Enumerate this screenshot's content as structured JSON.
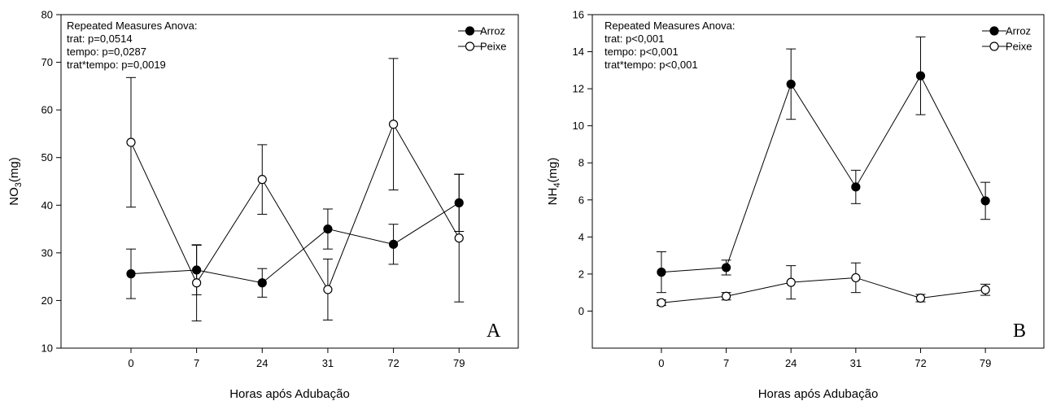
{
  "chart_data": [
    {
      "type": "line",
      "panel_letter": "A",
      "xlabel": "Horas após Adubação",
      "ylabel_main": "NO",
      "ylabel_sub": "3",
      "ylabel_unit": "(mg)",
      "categories": [
        "0",
        "7",
        "24",
        "31",
        "72",
        "79"
      ],
      "ylim": [
        10,
        80
      ],
      "yticks": [
        10,
        20,
        30,
        40,
        50,
        60,
        70,
        80
      ],
      "legend_position": "top-right",
      "anova": [
        "Repeated Measures Anova:",
        "trat: p=0,0514",
        "tempo: p=0,0287",
        "trat*tempo: p=0,0019"
      ],
      "series": [
        {
          "name": "Arroz",
          "marker": "filled",
          "values": [
            25.6,
            26.4,
            23.7,
            35.0,
            31.8,
            40.5
          ],
          "err": [
            5.2,
            5.2,
            3.0,
            4.2,
            4.2,
            6.0
          ]
        },
        {
          "name": "Peixe",
          "marker": "open",
          "values": [
            53.2,
            23.7,
            45.4,
            22.3,
            57.0,
            33.1
          ],
          "err": [
            13.6,
            8.0,
            7.3,
            6.4,
            13.8,
            13.4
          ]
        }
      ]
    },
    {
      "type": "line",
      "panel_letter": "B",
      "xlabel": "Horas após Adubação",
      "ylabel_main": "NH",
      "ylabel_sub": "4",
      "ylabel_unit": "(mg)",
      "categories": [
        "0",
        "7",
        "24",
        "31",
        "72",
        "79"
      ],
      "ylim": [
        -2,
        16
      ],
      "yticks": [
        0,
        2,
        4,
        6,
        8,
        10,
        12,
        14,
        16
      ],
      "legend_position": "top-right",
      "anova": [
        "Repeated Measures Anova:",
        "trat: p<0,001",
        "tempo: p<0,001",
        "trat*tempo: p<0,001"
      ],
      "series": [
        {
          "name": "Arroz",
          "marker": "filled",
          "values": [
            2.1,
            2.35,
            12.25,
            6.7,
            12.7,
            5.95
          ],
          "err": [
            1.1,
            0.4,
            1.9,
            0.9,
            2.1,
            1.0
          ]
        },
        {
          "name": "Peixe",
          "marker": "open",
          "values": [
            0.45,
            0.8,
            1.55,
            1.8,
            0.7,
            1.15
          ],
          "err": [
            0.15,
            0.2,
            0.9,
            0.8,
            0.2,
            0.3
          ]
        }
      ]
    }
  ]
}
